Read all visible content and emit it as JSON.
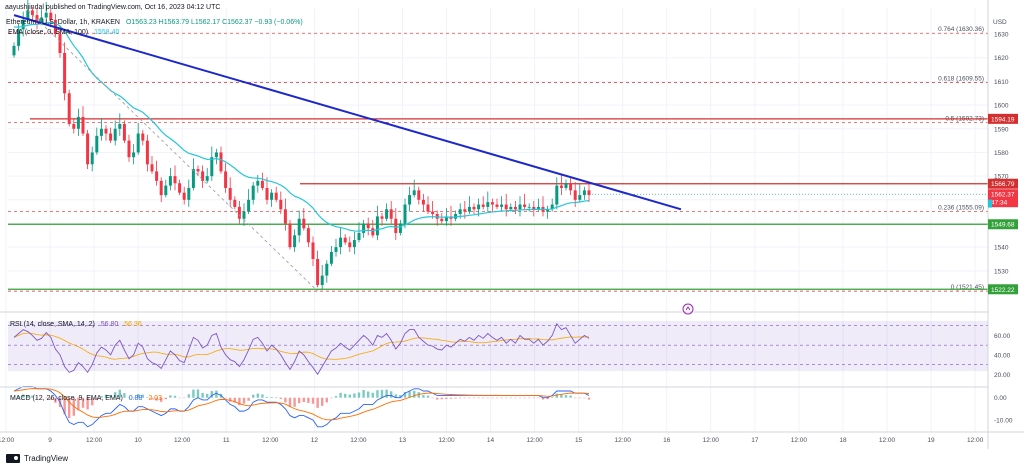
{
  "header": {
    "author_line": "aayushjindal published on TradingView.com, Oct 16, 2023 04:12 UTC",
    "symbol_line": "Ethereum / U.S. Dollar, 1h, KRAKEN",
    "ohlc": "O1563.23 H1563.79 L1562.17 C1562.37 −0.93 (−0.06%)",
    "ema_label": "EMA (close, 0, SMA, 100)",
    "ema_value": "1558.40"
  },
  "footer": {
    "brand": "TradingView"
  },
  "colors": {
    "up": "#089981",
    "down": "#f23645",
    "ema": "#26c6da",
    "trend": "#1c28c9",
    "support": "#33a13a",
    "resist": "#d32f2f",
    "fib": "#d32f2f",
    "rsi": "#7e57c2",
    "rsi_ma": "#f7a600",
    "macd": "#2962ff",
    "signal": "#ff6d00"
  },
  "chart_data": {
    "type": "candlestick",
    "currency": "USD",
    "price_ticks": [
      1630,
      1620,
      1610,
      1600,
      1590,
      1580,
      1570,
      1560,
      1550,
      1540,
      1530
    ],
    "price_range": [
      1516,
      1641
    ],
    "x_tick_labels": [
      "12:00",
      "9",
      "12:00",
      "10",
      "12:00",
      "11",
      "12:00",
      "12",
      "12:00",
      "13",
      "12:00",
      "14",
      "12:00",
      "15",
      "12:00",
      "16",
      "12:00",
      "17",
      "12:00",
      "18",
      "12:00",
      "19",
      "12:00"
    ],
    "fibonacci": [
      {
        "label": "0.764 (1630.36)",
        "value": 1630.36
      },
      {
        "label": "0.618 (1609.55)",
        "value": 1609.55
      },
      {
        "label": "0.5 (1592.73)",
        "value": 1592.73
      },
      {
        "label": "0.236 (1555.09)",
        "value": 1555.09
      },
      {
        "label": "0 (1521.45)",
        "value": 1521.45
      }
    ],
    "levels": [
      {
        "label": "1594.19",
        "value": 1594.19,
        "kind": "resistance"
      },
      {
        "label": "1566.79",
        "value": 1566.79,
        "kind": "resistance"
      },
      {
        "label": "1549.68",
        "value": 1549.68,
        "kind": "support"
      },
      {
        "label": "1522.22",
        "value": 1522.22,
        "kind": "support"
      }
    ],
    "last_price": {
      "label": "1562.37",
      "value": 1562.37,
      "countdown": "47:34"
    },
    "ema100_value": 1558.4,
    "trend_line": {
      "from": {
        "bar": 0,
        "price": 1638
      },
      "to": {
        "bar": 145,
        "price": 1556
      }
    },
    "closes": [
      1625,
      1632,
      1636,
      1640,
      1638,
      1635,
      1637,
      1639,
      1636,
      1630,
      1622,
      1605,
      1592,
      1590,
      1595,
      1588,
      1575,
      1580,
      1587,
      1590,
      1588,
      1585,
      1590,
      1592,
      1585,
      1578,
      1580,
      1588,
      1585,
      1575,
      1572,
      1568,
      1562,
      1566,
      1570,
      1567,
      1563,
      1560,
      1565,
      1573,
      1572,
      1568,
      1570,
      1578,
      1580,
      1572,
      1565,
      1560,
      1557,
      1552,
      1555,
      1560,
      1566,
      1568,
      1565,
      1560,
      1563,
      1560,
      1556,
      1550,
      1540,
      1545,
      1552,
      1548,
      1542,
      1535,
      1524,
      1528,
      1533,
      1538,
      1540,
      1544,
      1542,
      1540,
      1543,
      1546,
      1550,
      1548,
      1545,
      1553,
      1552,
      1556,
      1552,
      1546,
      1550,
      1558,
      1562,
      1564,
      1560,
      1558,
      1555,
      1554,
      1552,
      1551,
      1553,
      1552,
      1554,
      1556,
      1555,
      1557,
      1556,
      1558,
      1557,
      1559,
      1558,
      1557,
      1558,
      1556,
      1557,
      1556,
      1558,
      1557,
      1557,
      1556,
      1557,
      1555,
      1556,
      1558,
      1566,
      1565,
      1567,
      1564,
      1560,
      1562,
      1564,
      1562
    ],
    "rsi": {
      "label": "RSI (14, close, SMA, 14, 2)",
      "value": "56.80",
      "ma_value": "56.36",
      "ticks": [
        60,
        40,
        20
      ],
      "levels": [
        70,
        50,
        30
      ],
      "values": [
        58,
        62,
        66,
        64,
        60,
        55,
        57,
        63,
        58,
        46,
        40,
        28,
        22,
        24,
        32,
        28,
        22,
        30,
        42,
        48,
        45,
        40,
        50,
        55,
        45,
        36,
        40,
        52,
        48,
        36,
        32,
        30,
        26,
        35,
        44,
        40,
        34,
        32,
        45,
        58,
        55,
        47,
        50,
        60,
        62,
        48,
        40,
        35,
        33,
        28,
        35,
        45,
        56,
        58,
        52,
        44,
        50,
        46,
        40,
        32,
        25,
        33,
        44,
        40,
        33,
        27,
        20,
        28,
        36,
        44,
        47,
        52,
        48,
        45,
        50,
        55,
        60,
        56,
        50,
        60,
        58,
        62,
        55,
        46,
        52,
        62,
        66,
        66,
        58,
        54,
        50,
        49,
        46,
        45,
        50,
        48,
        52,
        56,
        54,
        58,
        55,
        60,
        57,
        62,
        58,
        55,
        58,
        52,
        56,
        52,
        60,
        56,
        56,
        52,
        56,
        50,
        54,
        60,
        72,
        66,
        68,
        60,
        52,
        56,
        60,
        57
      ]
    },
    "macd": {
      "label": "MACD (12, 26, close, 9, EMA, EMA)",
      "macd_value": "0.88",
      "signal_value": "2.03",
      "ticks": [
        "0.00",
        "-10.00"
      ],
      "values": [
        3,
        4,
        5,
        5,
        5,
        4,
        4,
        4,
        3,
        1,
        -2,
        -7,
        -11,
        -12,
        -11,
        -11,
        -13,
        -12,
        -10,
        -8,
        -7,
        -7,
        -5,
        -3,
        -4,
        -6,
        -6,
        -4,
        -4,
        -5,
        -6,
        -7,
        -8,
        -7,
        -5,
        -5,
        -6,
        -6,
        -4,
        -1,
        0,
        -1,
        -1,
        1,
        2,
        1,
        -1,
        -3,
        -4,
        -6,
        -6,
        -5,
        -2,
        -1,
        -1,
        -2,
        -2,
        -2,
        -3,
        -5,
        -8,
        -9,
        -8,
        -8,
        -9,
        -10,
        -13,
        -13,
        -12,
        -10,
        -9,
        -7,
        -7,
        -7,
        -6,
        -5,
        -3,
        -3,
        -3,
        -1,
        0,
        1,
        1,
        0,
        0,
        2,
        3,
        4,
        4,
        3,
        3,
        2,
        1,
        1,
        1,
        1,
        1,
        1,
        1,
        1,
        1,
        1,
        1,
        1,
        1,
        1,
        1,
        1,
        1,
        1,
        1,
        1,
        1,
        1,
        1,
        0,
        0,
        1,
        3,
        3,
        3,
        3,
        2,
        2,
        2,
        1
      ]
    }
  }
}
